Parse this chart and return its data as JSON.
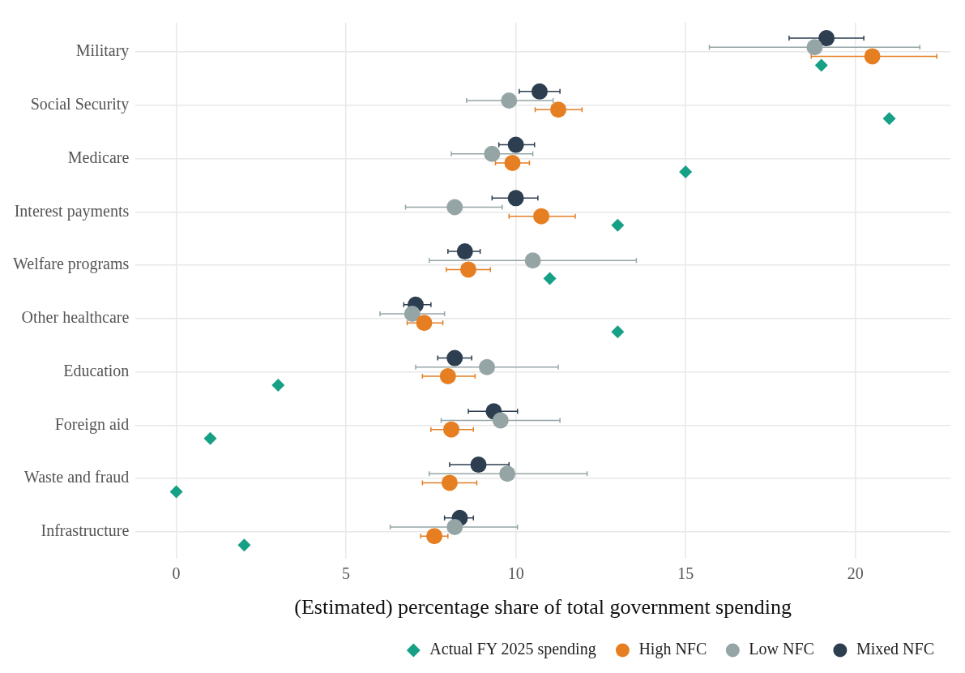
{
  "chart_data": {
    "type": "scatter",
    "orientation": "horizontal",
    "xlabel": "(Estimated) percentage share of total government spending",
    "categories": [
      "Military",
      "Social Security",
      "Medicare",
      "Interest payments",
      "Welfare programs",
      "Other healthcare",
      "Education",
      "Foreign aid",
      "Waste and fraud",
      "Infrastructure"
    ],
    "xlim": [
      -1.2,
      22.8
    ],
    "xticks": [
      0,
      5,
      10,
      15,
      20
    ],
    "grid": true,
    "legend": "bottom",
    "series": [
      {
        "name": "Actual FY 2025 spending",
        "color": "#16a085",
        "marker": "diamond",
        "values": [
          19,
          21,
          15,
          13,
          11,
          13,
          3,
          1,
          0,
          2
        ]
      },
      {
        "name": "High NFC",
        "color": "#e67e22",
        "marker": "circle",
        "values": [
          20.5,
          11.25,
          9.9,
          10.75,
          8.6,
          7.3,
          8.0,
          8.1,
          8.05,
          7.6
        ],
        "errors": [
          [
            18.7,
            22.4
          ],
          [
            10.57,
            11.95
          ],
          [
            9.4,
            10.4
          ],
          [
            9.8,
            11.75
          ],
          [
            7.95,
            9.25
          ],
          [
            6.8,
            7.85
          ],
          [
            7.25,
            8.8
          ],
          [
            7.5,
            8.75
          ],
          [
            7.25,
            8.85
          ],
          [
            7.2,
            8.0
          ]
        ]
      },
      {
        "name": "Low NFC",
        "color": "#95a5a6",
        "marker": "circle",
        "values": [
          18.8,
          9.8,
          9.3,
          8.2,
          10.5,
          6.95,
          9.15,
          9.55,
          9.75,
          8.2
        ],
        "errors": [
          [
            15.7,
            21.9
          ],
          [
            8.55,
            11.1
          ],
          [
            8.1,
            10.5
          ],
          [
            6.75,
            9.6
          ],
          [
            7.45,
            13.55
          ],
          [
            6.0,
            7.9
          ],
          [
            7.05,
            11.25
          ],
          [
            7.8,
            11.3
          ],
          [
            7.45,
            12.1
          ],
          [
            6.3,
            10.05
          ]
        ]
      },
      {
        "name": "Mixed NFC",
        "color": "#2c3e50",
        "marker": "circle",
        "values": [
          19.15,
          10.7,
          10.0,
          10.0,
          8.5,
          7.05,
          8.2,
          9.35,
          8.9,
          8.35
        ],
        "errors": [
          [
            18.05,
            20.25
          ],
          [
            10.1,
            11.3
          ],
          [
            9.5,
            10.55
          ],
          [
            9.3,
            10.65
          ],
          [
            8.0,
            8.95
          ],
          [
            6.7,
            7.5
          ],
          [
            7.7,
            8.7
          ],
          [
            8.6,
            10.05
          ],
          [
            8.05,
            9.8
          ],
          [
            7.9,
            8.75
          ]
        ]
      }
    ]
  }
}
